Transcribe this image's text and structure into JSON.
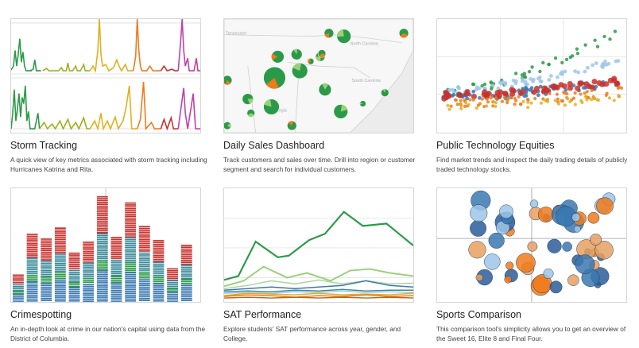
{
  "cards": [
    {
      "title": "Storm Tracking",
      "description": "A quick view of key metrics associated with storm tracking including Hurricanes Katrina and Rita.",
      "thumbnail_icon": "multi-series-sparkline-chart"
    },
    {
      "title": "Daily Sales Dashboard",
      "description": "Track customers and sales over time. Drill into region or customer segment and search for individual customers.",
      "thumbnail_icon": "map-with-pie-markers",
      "map_labels": [
        "North Carolina",
        "South Carolina",
        "Georgia",
        "Tennessee"
      ]
    },
    {
      "title": "Public Technology Equities",
      "description": "Find market trends and inspect the daily trading details of publicly traded technology stocks.",
      "thumbnail_icon": "multi-series-scatter-chart"
    },
    {
      "title": "Crimespotting",
      "description": "An in-depth look at crime in our nation's capital using data from the District of Columbia.",
      "thumbnail_icon": "stacked-bar-chart"
    },
    {
      "title": "SAT Performance",
      "description": "Explore students' SAT performance across year, gender, and College.",
      "thumbnail_icon": "multi-line-chart"
    },
    {
      "title": "Sports Comparison",
      "description": "This comparison tool's simplicity allows you to get an overview of the Sweet 16, Elite 8 and Final Four.",
      "thumbnail_icon": "quadrant-bubble-chart"
    }
  ],
  "colors": {
    "green": "#2b9a48",
    "olive": "#9ab21f",
    "gold": "#e0b020",
    "orange": "#f07a1a",
    "red": "#c9302c",
    "magenta": "#c040a8",
    "blue": "#3a78b0",
    "teal": "#3a8a9a",
    "light_blue": "#9ec6e8"
  }
}
